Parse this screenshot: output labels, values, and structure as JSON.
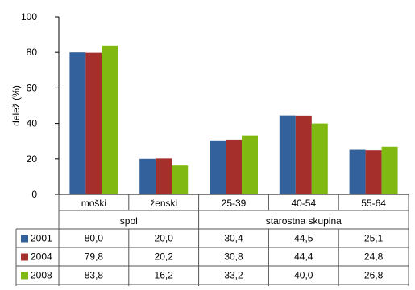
{
  "chart_data": {
    "type": "bar",
    "ylabel": "delež (%)",
    "ylim": [
      0,
      100
    ],
    "yticks": [
      "0",
      "20",
      "40",
      "60",
      "80",
      "100"
    ],
    "categories": [
      "moški",
      "ženski",
      "25-39",
      "40-54",
      "55-64"
    ],
    "groups": [
      {
        "label": "spol",
        "count": 2
      },
      {
        "label": "starostna skupina",
        "count": 3
      }
    ],
    "series": [
      {
        "name": "2001",
        "color": "#33619b",
        "values": [
          80.0,
          20.0,
          30.4,
          44.5,
          25.1
        ],
        "labels": [
          "80,0",
          "20,0",
          "30,4",
          "44,5",
          "25,1"
        ]
      },
      {
        "name": "2004",
        "color": "#a52f2a",
        "values": [
          79.8,
          20.2,
          30.8,
          44.4,
          24.8
        ],
        "labels": [
          "79,8",
          "20,2",
          "30,8",
          "44,4",
          "24,8"
        ]
      },
      {
        "name": "2008",
        "color": "#80b912",
        "values": [
          83.8,
          16.2,
          33.2,
          40.0,
          26.8
        ],
        "labels": [
          "83,8",
          "16,2",
          "33,2",
          "40,0",
          "26,8"
        ]
      }
    ],
    "grid": false,
    "legend": "data-table"
  }
}
